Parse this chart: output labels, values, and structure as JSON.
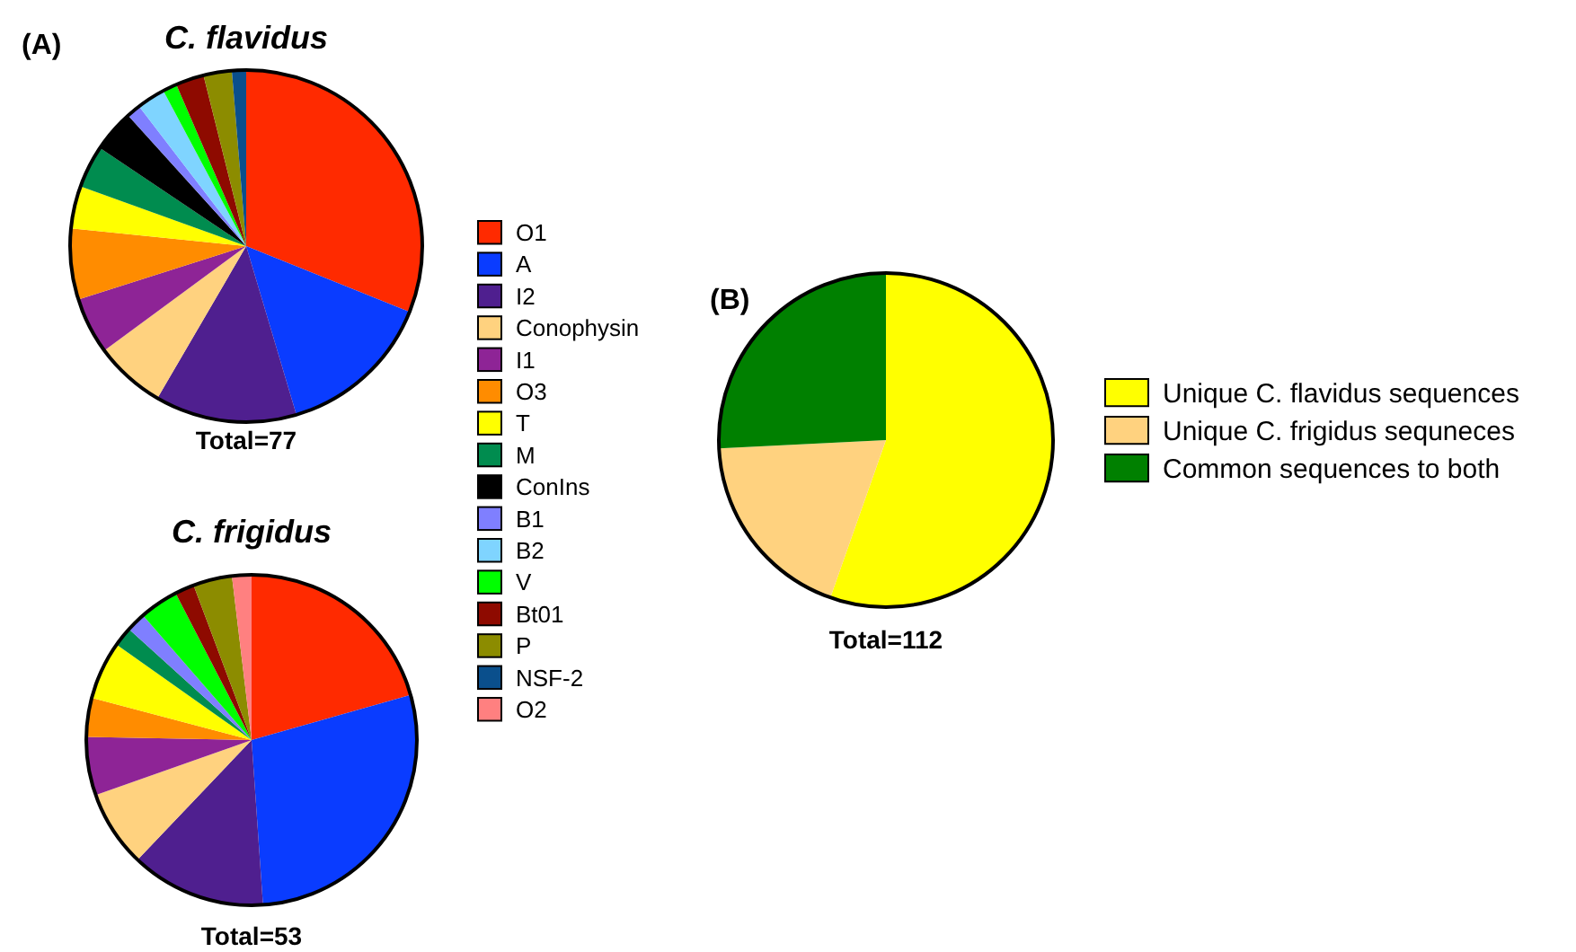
{
  "chart_data": [
    {
      "type": "pie",
      "title": "C. flavidus",
      "annotations": [
        "(A)",
        "Total=77"
      ],
      "legend": "right",
      "categories": [
        "O1",
        "A",
        "I2",
        "Conophysin",
        "I1",
        "O3",
        "T",
        "M",
        "ConIns",
        "B1",
        "B2",
        "V",
        "Bt01",
        "P",
        "NSF-2",
        "O2"
      ],
      "values": [
        31.1,
        14.3,
        13.0,
        6.5,
        5.2,
        6.5,
        3.9,
        3.9,
        3.9,
        1.3,
        2.6,
        1.3,
        2.6,
        2.6,
        1.3,
        0
      ],
      "colors": [
        "#ff2a00",
        "#0a3cff",
        "#4f1f8f",
        "#ffd27f",
        "#8e2496",
        "#ff8c00",
        "#ffff00",
        "#008c4f",
        "#000000",
        "#7f7fff",
        "#7fd4ff",
        "#00ff00",
        "#8e0a00",
        "#8c8c00",
        "#0a4f8c",
        "#ff8080"
      ]
    },
    {
      "type": "pie",
      "title": "C. frigidus",
      "annotations": [
        "Total=53"
      ],
      "categories": [
        null,
        null,
        null,
        null,
        null,
        null,
        null,
        null,
        null,
        null,
        null,
        null,
        null,
        null,
        null,
        null
      ],
      "values": [
        20.6,
        28.3,
        13.2,
        7.5,
        5.7,
        3.8,
        5.7,
        1.9,
        0,
        1.9,
        0,
        3.8,
        1.9,
        3.8,
        0,
        1.9
      ],
      "colors": [
        "#ff2a00",
        "#0a3cff",
        "#4f1f8f",
        "#ffd27f",
        "#8e2496",
        "#ff8c00",
        "#ffff00",
        "#008c4f",
        "#000000",
        "#7f7fff",
        "#7fd4ff",
        "#00ff00",
        "#8e0a00",
        "#8c8c00",
        "#0a4f8c",
        "#ff8080"
      ]
    },
    {
      "type": "pie",
      "annotations": [
        "(B)",
        "Total=112"
      ],
      "legend": "right",
      "categories": [
        "Unique C. flavidus sequences",
        "Unique C. frigidus sequneces",
        "Common sequences to both"
      ],
      "values": [
        55.4,
        18.8,
        25.8
      ],
      "colors": [
        "#ffff00",
        "#ffd27f",
        "#008000"
      ]
    }
  ]
}
